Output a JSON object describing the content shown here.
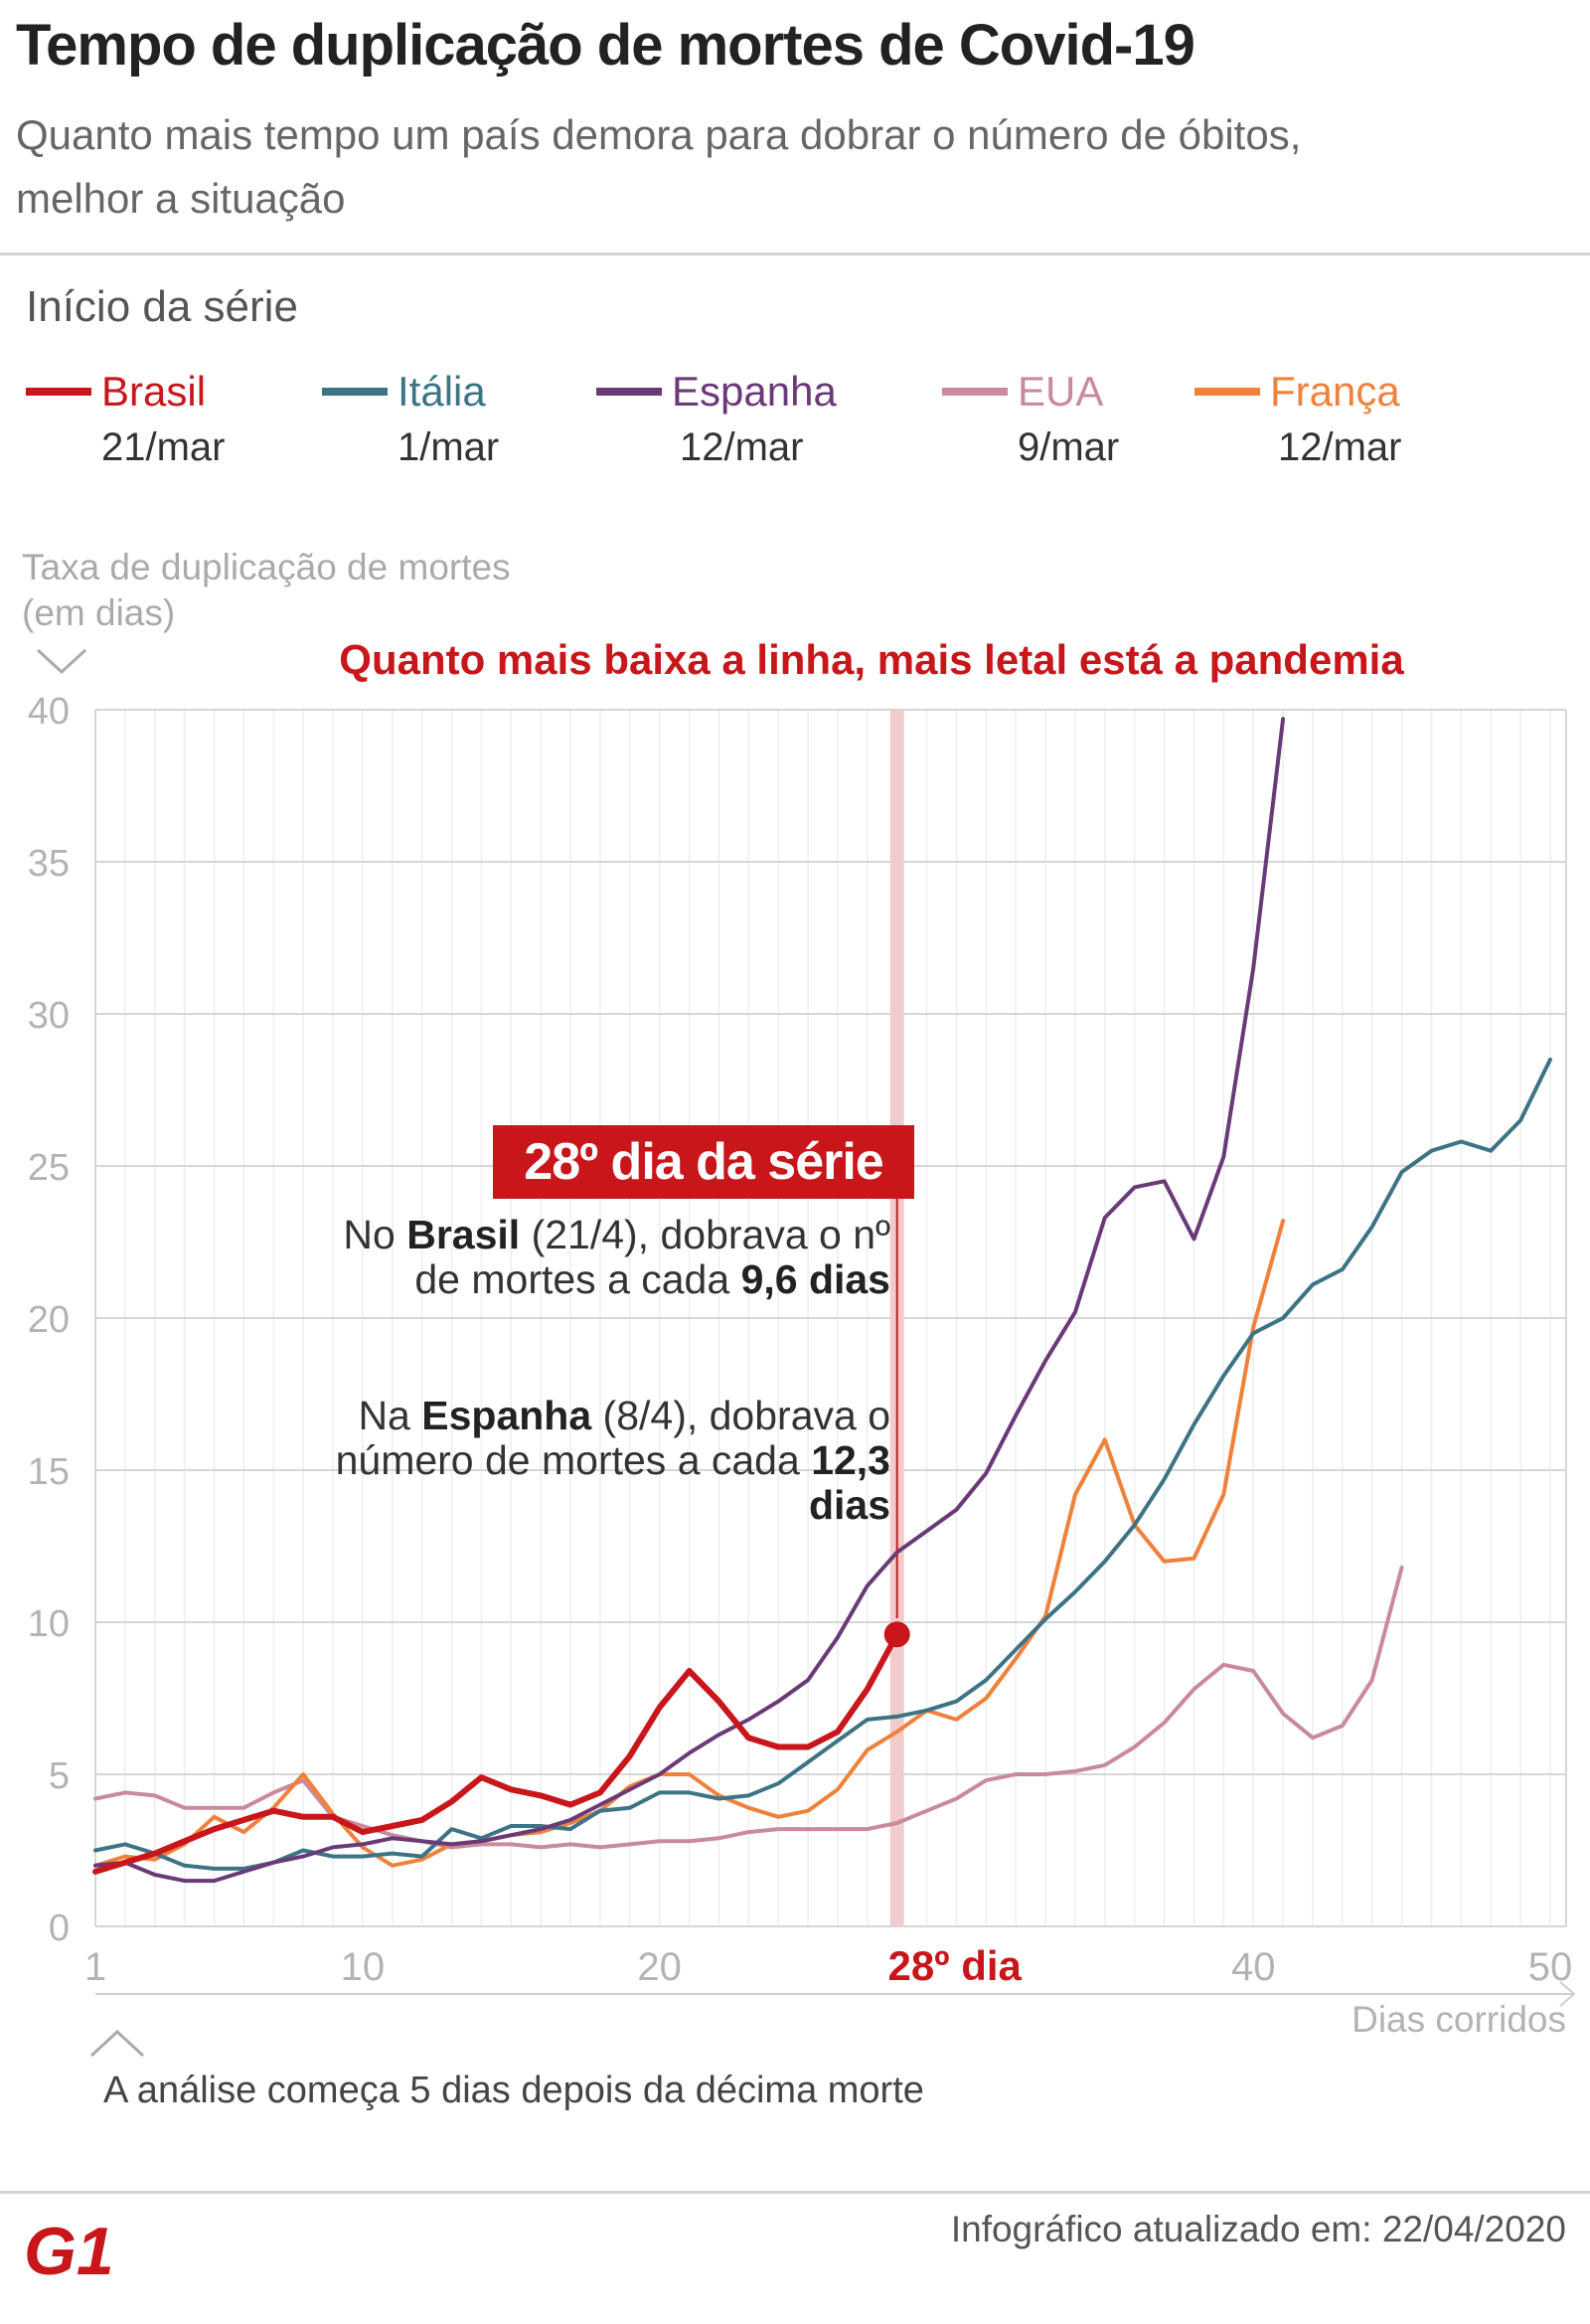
{
  "header": {
    "title": "Tempo de duplicação de mortes de Covid-19",
    "subtitle": "Quanto mais tempo um país demora para dobrar o número de óbitos, melhor a situação"
  },
  "legend": {
    "section_label": "Início da série",
    "items": [
      {
        "name": "Brasil",
        "date": "21/mar",
        "color": "#c8161b"
      },
      {
        "name": "Itália",
        "date": "1/mar",
        "color": "#3c7486"
      },
      {
        "name": "Espanha",
        "date": "12/mar",
        "color": "#6a3a78"
      },
      {
        "name": "EUA",
        "date": "9/mar",
        "color": "#c98a9c"
      },
      {
        "name": "França",
        "date": "12/mar",
        "color": "#f0813b"
      }
    ]
  },
  "annotation": {
    "headline": "Quanto mais baixa a linha, mais letal está a pandemia",
    "box_label": "28º dia da série",
    "brasil_prefix": "No ",
    "brasil_country": "Brasil",
    "brasil_mid": " (21/4), dobrava o nº de mortes a cada ",
    "brasil_value": "9,6 dias",
    "espanha_prefix": "Na ",
    "espanha_country": "Espanha",
    "espanha_mid": " (8/4), dobrava o número de mortes a cada ",
    "espanha_value": "12,3 dias",
    "highlight_x_label": "28º dia"
  },
  "footnote": "A análise começa 5 dias depois da décima morte",
  "credit": "Infográfico atualizado em: 22/04/2020",
  "logo_text": "G1",
  "chart_data": {
    "type": "line",
    "ylabel": "Taxa de duplicação de mortes (em dias)",
    "xlabel": "Dias corridos",
    "xlim": [
      1,
      50
    ],
    "ylim": [
      0,
      40
    ],
    "x_ticks": [
      1,
      10,
      20,
      40,
      50
    ],
    "y_ticks": [
      0,
      5,
      10,
      15,
      20,
      25,
      30,
      35,
      40
    ],
    "highlight_x": 28,
    "grid": true,
    "series": [
      {
        "name": "Brasil",
        "color": "#c8161b",
        "values": [
          1.8,
          2.1,
          2.4,
          2.8,
          3.2,
          3.5,
          3.8,
          3.6,
          3.6,
          3.1,
          3.3,
          3.5,
          4.1,
          4.9,
          4.5,
          4.3,
          4.0,
          4.4,
          5.6,
          7.2,
          8.4,
          7.4,
          6.2,
          5.9,
          5.9,
          6.4,
          7.8,
          9.6
        ]
      },
      {
        "name": "Itália",
        "color": "#3c7486",
        "values": [
          2.5,
          2.7,
          2.4,
          2.0,
          1.9,
          1.9,
          2.1,
          2.5,
          2.3,
          2.3,
          2.4,
          2.3,
          3.2,
          2.9,
          3.3,
          3.3,
          3.2,
          3.8,
          3.9,
          4.4,
          4.4,
          4.2,
          4.3,
          4.7,
          5.4,
          6.1,
          6.8,
          6.9,
          7.1,
          7.4,
          8.1,
          9.1,
          10.1,
          11.0,
          12.0,
          13.2,
          14.7,
          16.5,
          18.1,
          19.5,
          20.0,
          21.1,
          21.6,
          23.0,
          24.8,
          25.5,
          25.8,
          25.5,
          26.5,
          28.5
        ]
      },
      {
        "name": "Espanha",
        "color": "#6a3a78",
        "values": [
          2.0,
          2.1,
          1.7,
          1.5,
          1.5,
          1.8,
          2.1,
          2.3,
          2.6,
          2.7,
          2.9,
          2.8,
          2.7,
          2.8,
          3.0,
          3.2,
          3.5,
          4.0,
          4.5,
          5.0,
          5.7,
          6.3,
          6.8,
          7.4,
          8.1,
          9.5,
          11.2,
          12.3,
          13.0,
          13.7,
          14.9,
          16.8,
          18.6,
          20.2,
          23.3,
          24.3,
          24.5,
          22.6,
          25.3,
          31.5,
          39.7
        ]
      },
      {
        "name": "EUA",
        "color": "#c98a9c",
        "values": [
          4.2,
          4.4,
          4.3,
          3.9,
          3.9,
          3.9,
          4.4,
          4.8,
          3.6,
          3.3,
          3.0,
          2.8,
          2.6,
          2.7,
          2.7,
          2.6,
          2.7,
          2.6,
          2.7,
          2.8,
          2.8,
          2.9,
          3.1,
          3.2,
          3.2,
          3.2,
          3.2,
          3.4,
          3.8,
          4.2,
          4.8,
          5.0,
          5.0,
          5.1,
          5.3,
          5.9,
          6.7,
          7.8,
          8.6,
          8.4,
          7.0,
          6.2,
          6.6,
          8.1,
          11.8
        ]
      },
      {
        "name": "França",
        "color": "#f0813b",
        "values": [
          2.0,
          2.3,
          2.2,
          2.7,
          3.6,
          3.1,
          3.9,
          5.0,
          3.7,
          2.6,
          2.0,
          2.2,
          2.7,
          2.8,
          3.0,
          3.1,
          3.4,
          3.8,
          4.6,
          5.0,
          5.0,
          4.3,
          3.9,
          3.6,
          3.8,
          4.5,
          5.8,
          6.4,
          7.1,
          6.8,
          7.5,
          8.8,
          10.2,
          14.2,
          16.0,
          13.2,
          12.0,
          12.1,
          14.2,
          19.7,
          23.2
        ]
      }
    ]
  }
}
